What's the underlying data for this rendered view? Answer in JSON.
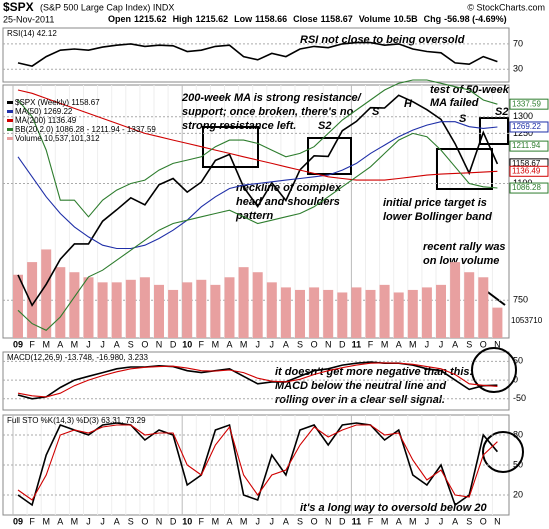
{
  "header": {
    "symbol": "$SPX",
    "name": "(S&P 500 Large Cap Index) INDX",
    "copyright": "© StockCharts.com",
    "date": "25-Nov-2011",
    "quote": [
      {
        "label": "Open",
        "value": "1215.62"
      },
      {
        "label": "High",
        "value": "1215.62"
      },
      {
        "label": "Low",
        "value": "1158.66"
      },
      {
        "label": "Close",
        "value": "1158.67"
      },
      {
        "label": "Volume",
        "value": "10.5B"
      },
      {
        "label": "Chg",
        "value": "-56.98 (-4.69%)"
      }
    ]
  },
  "chart_data": [
    {
      "type": "line",
      "label": "RSI(14) 42.12",
      "ylim": [
        10,
        95
      ],
      "yticks": [
        30,
        70
      ],
      "series": [
        {
          "name": "RSI(14)",
          "color": "#000000",
          "values": [
            40,
            35,
            50,
            60,
            62,
            60,
            65,
            68,
            70,
            66,
            68,
            67,
            58,
            60,
            66,
            68,
            50,
            45,
            55,
            50,
            62,
            66,
            64,
            70,
            72,
            72,
            68,
            70,
            62,
            58,
            56,
            40,
            38,
            50,
            42.12
          ]
        }
      ],
      "annotations": [
        [
          "RSI not close to being oversold"
        ]
      ]
    },
    {
      "type": "line",
      "ylim": [
        637,
        1395
      ],
      "yticks": [
        750,
        1100,
        1250,
        1300
      ],
      "categories": [
        "09",
        "F",
        "M",
        "A",
        "M",
        "J",
        "J",
        "A",
        "S",
        "O",
        "N",
        "D",
        "10",
        "F",
        "M",
        "A",
        "M",
        "J",
        "J",
        "A",
        "S",
        "O",
        "N",
        "D",
        "11",
        "F",
        "M",
        "A",
        "M",
        "J",
        "J",
        "A",
        "S",
        "O",
        "N"
      ],
      "series": [
        {
          "name": "$SPX (Weekly) 1158.67",
          "color": "#000000",
          "values": [
            826,
            735,
            798,
            873,
            919,
            919,
            987,
            1021,
            1057,
            1036,
            1096,
            1115,
            1074,
            1104,
            1169,
            1187,
            1089,
            1031,
            1102,
            1049,
            1141,
            1183,
            1181,
            1258,
            1286,
            1327,
            1326,
            1364,
            1345,
            1321,
            1292,
            1219,
            1131,
            1253,
            1158.67
          ]
        },
        {
          "name": "MA(50) 1269.22",
          "color": "#1f2fa8",
          "values": [
            1180,
            1120,
            1060,
            1010,
            970,
            940,
            915,
            905,
            905,
            915,
            935,
            960,
            990,
            1030,
            1060,
            1085,
            1095,
            1100,
            1105,
            1110,
            1115,
            1120,
            1125,
            1140,
            1160,
            1190,
            1215,
            1240,
            1260,
            1275,
            1285,
            1285,
            1270,
            1265,
            1269.22
          ]
        },
        {
          "name": "MA(200) 1136.49",
          "color": "#d00000",
          "values": [
            1380,
            1370,
            1355,
            1340,
            1325,
            1310,
            1295,
            1280,
            1265,
            1250,
            1240,
            1230,
            1220,
            1210,
            1200,
            1190,
            1180,
            1170,
            1160,
            1150,
            1140,
            1130,
            1120,
            1115,
            1110,
            1110,
            1110,
            1115,
            1120,
            1125,
            1128,
            1130,
            1132,
            1134,
            1136.49
          ]
        },
        {
          "name": "BB(20,2.0) 1086.28 - 1211.94 - 1337.59",
          "color": "#2e7d2e",
          "values": [
            1350,
            1300,
            1200,
            1050,
            1050,
            1000,
            1050,
            1080,
            1100,
            1110,
            1140,
            1160,
            1170,
            1180,
            1210,
            1230,
            1230,
            1220,
            1200,
            1180,
            1190,
            1210,
            1250,
            1290,
            1320,
            1350,
            1380,
            1400,
            1410,
            1410,
            1400,
            1390,
            1380,
            1350,
            1337.59
          ]
        },
        {
          "name": "BB lower",
          "color": "#2e7d2e",
          "values": [
            720,
            680,
            660,
            700,
            760,
            820,
            840,
            870,
            900,
            930,
            960,
            980,
            990,
            1000,
            1010,
            1020,
            1000,
            980,
            990,
            1000,
            1010,
            1030,
            1060,
            1090,
            1120,
            1150,
            1190,
            1230,
            1250,
            1240,
            1200,
            1150,
            1100,
            1090,
            1086.28
          ]
        }
      ],
      "volume": {
        "name": "Volume 10,537,101,312",
        "color": "#e8a0a0",
        "vlim": [
          0,
          100
        ],
        "right_label": "1053710",
        "values": [
          25,
          30,
          35,
          28,
          26,
          24,
          22,
          22,
          23,
          24,
          21,
          19,
          22,
          23,
          21,
          24,
          28,
          26,
          22,
          20,
          19,
          20,
          19,
          18,
          20,
          19,
          21,
          18,
          19,
          20,
          21,
          30,
          26,
          24,
          12
        ]
      },
      "tags": [
        1337.59,
        1269.22,
        1211.94,
        1158.67,
        1136.49,
        1086.28
      ],
      "tag_colors": [
        "#2e7d2e",
        "#1f2fa8",
        "#2e7d2e",
        "#000000",
        "#d00000",
        "#2e7d2e"
      ],
      "annotations": [
        [
          "200-week MA is strong resistance/",
          "support; once broken, there's no",
          "strong resistance left."
        ],
        [
          "test of 50-week",
          "MA failed"
        ],
        [
          "neckline of complex",
          "head and shoulders",
          "pattern"
        ],
        [
          "initial price target is",
          "lower Bollinger band"
        ],
        [
          "recent rally was",
          "on low volume"
        ],
        [
          "S2",
          "S",
          "H",
          "S",
          "S2"
        ]
      ]
    },
    {
      "type": "line",
      "label": "MACD(12,26,9) -13.748, -16.980, 3.233",
      "ylim": [
        -80,
        75
      ],
      "yticks": [
        -50,
        0,
        50
      ],
      "series": [
        {
          "name": "MACD",
          "color": "#000000",
          "values": [
            -40,
            -50,
            -45,
            -20,
            0,
            10,
            20,
            30,
            35,
            35,
            38,
            36,
            25,
            20,
            25,
            30,
            10,
            -10,
            -5,
            -5,
            10,
            25,
            30,
            40,
            45,
            48,
            45,
            45,
            40,
            30,
            25,
            0,
            -25,
            -15,
            -13.748
          ]
        },
        {
          "name": "Signal",
          "color": "#d00000",
          "values": [
            -35,
            -42,
            -45,
            -35,
            -15,
            0,
            12,
            22,
            30,
            34,
            36,
            37,
            32,
            25,
            24,
            27,
            20,
            5,
            -3,
            -5,
            2,
            15,
            25,
            33,
            40,
            45,
            46,
            45,
            42,
            36,
            30,
            15,
            -10,
            -14,
            -16.98
          ]
        }
      ],
      "annotations": [
        [
          "it doesn't get more negative than this:",
          "MACD below the neutral line and",
          "rolling over in a clear sell signal."
        ]
      ]
    },
    {
      "type": "line",
      "label": "Full STO %K(14,3) %D(3) 63.31, 73.29",
      "ylim": [
        0,
        100
      ],
      "yticks": [
        20,
        50,
        80
      ],
      "categories": [
        "09",
        "F",
        "M",
        "A",
        "M",
        "J",
        "J",
        "A",
        "S",
        "O",
        "N",
        "D",
        "10",
        "F",
        "M",
        "A",
        "M",
        "J",
        "J",
        "A",
        "S",
        "O",
        "N",
        "D",
        "11",
        "F",
        "M",
        "A",
        "M",
        "J",
        "J",
        "A",
        "S",
        "O",
        "N"
      ],
      "series": [
        {
          "name": "%K",
          "color": "#000000",
          "values": [
            20,
            10,
            60,
            90,
            85,
            80,
            90,
            92,
            90,
            75,
            85,
            80,
            30,
            40,
            85,
            90,
            20,
            15,
            60,
            40,
            85,
            90,
            70,
            90,
            92,
            90,
            75,
            85,
            40,
            30,
            50,
            10,
            20,
            80,
            63.31
          ]
        },
        {
          "name": "%D",
          "color": "#d00000",
          "values": [
            25,
            15,
            40,
            80,
            85,
            82,
            88,
            90,
            90,
            80,
            82,
            82,
            50,
            40,
            70,
            88,
            40,
            20,
            40,
            45,
            70,
            88,
            78,
            85,
            90,
            90,
            80,
            82,
            55,
            35,
            45,
            20,
            18,
            60,
            73.29
          ]
        }
      ],
      "annotations": [
        [
          "it's a long way to oversold below 20"
        ]
      ]
    }
  ]
}
